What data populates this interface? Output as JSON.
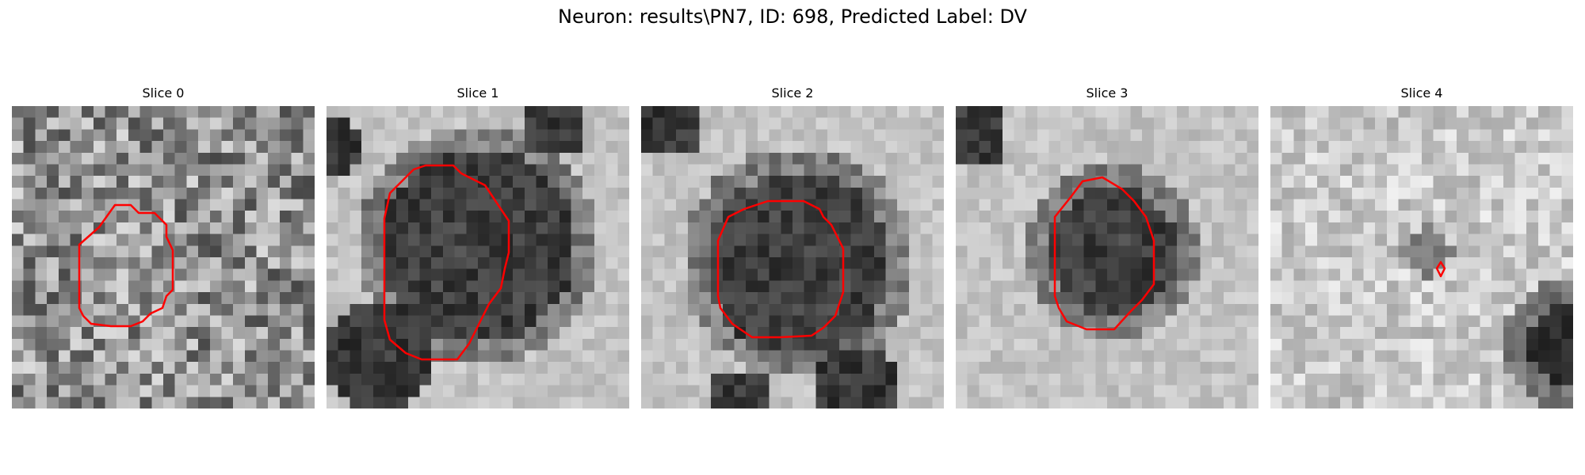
{
  "figure": {
    "title": "Neuron: results\\PN7, ID: 698, Predicted Label: DV"
  },
  "contour_color": "#ff0000",
  "panels": [
    {
      "label": "Slice 0",
      "texture": "noisy-gray",
      "contour": "irregular-octagon"
    },
    {
      "label": "Slice 1",
      "texture": "dark-blob-on-light",
      "contour": "large-octagon"
    },
    {
      "label": "Slice 2",
      "texture": "dark-blob-on-light",
      "contour": "large-octagon"
    },
    {
      "label": "Slice 3",
      "texture": "dark-blob-on-light",
      "contour": "medium-octagon"
    },
    {
      "label": "Slice 4",
      "texture": "light-with-dark-corner",
      "contour": "tiny-diamond"
    }
  ]
}
